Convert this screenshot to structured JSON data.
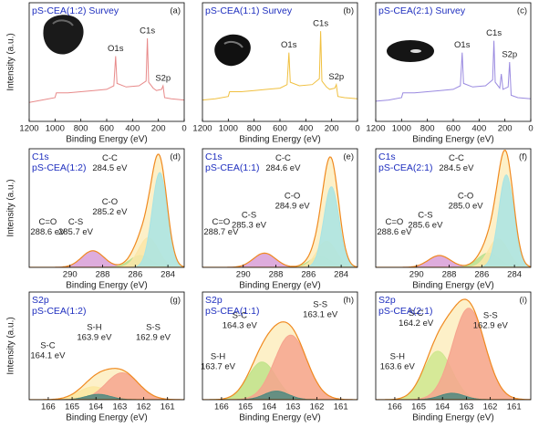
{
  "chart_data": [
    {
      "type": "line",
      "title": "pS-CEA(1:2) Survey",
      "label": "(a)",
      "xlabel": "Binding Energy (eV)",
      "ylabel": "Intensity (a.u.)",
      "color": "#e88a8a",
      "x": [
        1200,
        1100,
        1000,
        990,
        900,
        800,
        700,
        600,
        545,
        531,
        520,
        450,
        350,
        295,
        285,
        275,
        240,
        228,
        215,
        175,
        164,
        152,
        100,
        0
      ],
      "values": [
        16,
        18,
        20,
        24,
        24,
        25,
        26,
        27,
        30,
        55,
        32,
        29,
        30,
        34,
        70,
        33,
        28,
        27,
        26,
        27,
        30,
        20,
        19,
        18
      ],
      "xlim": [
        1200,
        0
      ],
      "xticks": [
        1200,
        1000,
        800,
        600,
        400,
        200,
        0
      ],
      "ylim": [
        0,
        100
      ],
      "annotations": [
        {
          "text": "O1s",
          "x": 531
        },
        {
          "text": "C1s",
          "x": 285
        },
        {
          "text": "S2p",
          "x": 164
        }
      ]
    },
    {
      "type": "line",
      "title": "pS-CEA(1:1) Survey",
      "label": "(b)",
      "xlabel": "Binding Energy (eV)",
      "color": "#f0c040",
      "x": [
        1200,
        1100,
        1000,
        990,
        900,
        800,
        700,
        600,
        545,
        531,
        520,
        450,
        350,
        295,
        285,
        275,
        240,
        228,
        215,
        175,
        164,
        152,
        100,
        0
      ],
      "values": [
        18,
        19,
        21,
        25,
        25,
        26,
        27,
        28,
        31,
        58,
        33,
        30,
        31,
        36,
        76,
        34,
        29,
        28,
        27,
        28,
        31,
        21,
        20,
        19
      ],
      "xlim": [
        1200,
        0
      ],
      "xticks": [
        1200,
        1000,
        800,
        600,
        400,
        200,
        0
      ],
      "ylim": [
        0,
        100
      ],
      "annotations": [
        {
          "text": "O1s",
          "x": 531
        },
        {
          "text": "C1s",
          "x": 285
        },
        {
          "text": "S2p",
          "x": 164
        }
      ]
    },
    {
      "type": "line",
      "title": "pS-CEA(2:1) Survey",
      "label": "(c)",
      "xlabel": "Binding Energy (eV)",
      "color": "#9a8ae0",
      "x": [
        1200,
        1100,
        1000,
        990,
        900,
        800,
        700,
        600,
        545,
        531,
        520,
        450,
        350,
        295,
        285,
        275,
        240,
        228,
        215,
        175,
        164,
        152,
        100,
        0
      ],
      "values": [
        17,
        18,
        20,
        24,
        24,
        25,
        26,
        27,
        30,
        58,
        32,
        29,
        30,
        35,
        68,
        33,
        28,
        40,
        27,
        29,
        50,
        22,
        20,
        19
      ],
      "xlim": [
        1200,
        0
      ],
      "xticks": [
        1200,
        1000,
        800,
        600,
        400,
        200,
        0
      ],
      "ylim": [
        0,
        100
      ],
      "annotations": [
        {
          "text": "O1s",
          "x": 531
        },
        {
          "text": "C1s",
          "x": 285
        },
        {
          "text": "S2p",
          "x": 164
        }
      ]
    },
    {
      "type": "peak",
      "title": "C1s",
      "subtitle": "pS-CEA(1:2)",
      "label": "(d)",
      "xlabel": "Binding Energy (eV)",
      "ylabel": "Intensity (a.u.)",
      "xlim": [
        292.5,
        283
      ],
      "xticks": [
        290,
        288,
        286,
        284
      ],
      "ylim": [
        0,
        100
      ],
      "envelope_color": "#f08a20",
      "series": [
        {
          "name": "C=O",
          "label": "288.6 eV",
          "center": 288.6,
          "height": 14,
          "fwhm": 1.6,
          "color": "#d8a0e0"
        },
        {
          "name": "C-S",
          "label": "285.7 eV",
          "center": 285.7,
          "height": 10,
          "fwhm": 1.5,
          "color": "#b8e090"
        },
        {
          "name": "C-O",
          "label": "285.2 eV",
          "center": 285.2,
          "height": 25,
          "fwhm": 1.4,
          "color": "#fce6a8"
        },
        {
          "name": "C-C",
          "label": "284.5 eV",
          "center": 284.5,
          "height": 80,
          "fwhm": 1.1,
          "color": "#a8e4e4"
        }
      ]
    },
    {
      "type": "peak",
      "title": "C1s",
      "subtitle": "pS-CEA(1:1)",
      "label": "(e)",
      "xlabel": "Binding Energy (eV)",
      "xlim": [
        292.5,
        283
      ],
      "xticks": [
        290,
        288,
        286,
        284
      ],
      "ylim": [
        0,
        100
      ],
      "envelope_color": "#f08a20",
      "series": [
        {
          "name": "C=O",
          "label": "288.7 eV",
          "center": 288.7,
          "height": 12,
          "fwhm": 1.6,
          "color": "#d8a0e0"
        },
        {
          "name": "C-S",
          "label": "285.3 eV",
          "center": 285.3,
          "height": 9,
          "fwhm": 1.5,
          "color": "#b8e090"
        },
        {
          "name": "C-O",
          "label": "284.9 eV",
          "center": 284.9,
          "height": 22,
          "fwhm": 1.4,
          "color": "#fce6a8"
        },
        {
          "name": "C-C",
          "label": "284.6 eV",
          "center": 284.6,
          "height": 68,
          "fwhm": 1.1,
          "color": "#a8e4e4"
        }
      ]
    },
    {
      "type": "peak",
      "title": "C1s",
      "subtitle": "pS-CEA(2:1)",
      "label": "(f)",
      "xlabel": "Binding Energy (eV)",
      "xlim": [
        292.5,
        283
      ],
      "xticks": [
        290,
        288,
        286,
        284
      ],
      "ylim": [
        0,
        100
      ],
      "envelope_color": "#f08a20",
      "series": [
        {
          "name": "C=O",
          "label": "288.6 eV",
          "center": 288.6,
          "height": 10,
          "fwhm": 1.6,
          "color": "#d8a0e0"
        },
        {
          "name": "C-S",
          "label": "285.6 eV",
          "center": 285.6,
          "height": 12,
          "fwhm": 1.5,
          "color": "#b8e090"
        },
        {
          "name": "C-O",
          "label": "285.0 eV",
          "center": 285.0,
          "height": 24,
          "fwhm": 1.4,
          "color": "#fce6a8"
        },
        {
          "name": "C-C",
          "label": "284.5 eV",
          "center": 284.5,
          "height": 78,
          "fwhm": 1.1,
          "color": "#a8e4e4"
        }
      ]
    },
    {
      "type": "peak",
      "title": "S2p",
      "subtitle": "pS-CEA(1:2)",
      "label": "(g)",
      "xlabel": "Binding Energy (eV)",
      "ylabel": "Intensity (a.u.)",
      "xlim": [
        166.8,
        160.3
      ],
      "xticks": [
        166,
        165,
        164,
        163,
        162,
        161
      ],
      "ylim": [
        0,
        100
      ],
      "envelope_color": "#f08a20",
      "series": [
        {
          "name": "S-C",
          "label": "164.1 eV",
          "center": 164.1,
          "height": 12,
          "fwhm": 1.5,
          "color": "#fbe7a0"
        },
        {
          "name": "S-S",
          "label": "162.9 eV",
          "center": 162.9,
          "height": 25,
          "fwhm": 1.6,
          "color": "#f6a48e"
        },
        {
          "name": "S-H",
          "label": "163.9 eV",
          "center": 163.9,
          "height": 5,
          "fwhm": 1.2,
          "color": "#4d8a80"
        }
      ]
    },
    {
      "type": "peak",
      "title": "S2p",
      "subtitle": "pS-CEA(1:1)",
      "label": "(h)",
      "xlabel": "Binding Energy (eV)",
      "xlim": [
        166.8,
        160.3
      ],
      "xticks": [
        166,
        165,
        164,
        163,
        162,
        161
      ],
      "ylim": [
        0,
        100
      ],
      "envelope_color": "#f08a20",
      "series": [
        {
          "name": "S-C",
          "label": "164.3 eV",
          "center": 164.3,
          "height": 35,
          "fwhm": 1.4,
          "color": "#c0e38a"
        },
        {
          "name": "S-S",
          "label": "163.1 eV",
          "center": 163.1,
          "height": 60,
          "fwhm": 1.6,
          "color": "#f6a48e"
        },
        {
          "name": "S-H",
          "label": "163.7 eV",
          "center": 163.7,
          "height": 8,
          "fwhm": 1.2,
          "color": "#4d8a80"
        }
      ]
    },
    {
      "type": "peak",
      "title": "S2p",
      "subtitle": "pS-CEA(2:1)",
      "label": "(i)",
      "xlabel": "Binding Energy (eV)",
      "xlim": [
        166.8,
        160.3
      ],
      "xticks": [
        166,
        165,
        164,
        163,
        162,
        161
      ],
      "ylim": [
        0,
        100
      ],
      "envelope_color": "#f08a20",
      "series": [
        {
          "name": "S-C",
          "label": "164.2 eV",
          "center": 164.2,
          "height": 45,
          "fwhm": 1.4,
          "color": "#cfe88f"
        },
        {
          "name": "S-S",
          "label": "162.9 eV",
          "center": 162.9,
          "height": 85,
          "fwhm": 1.6,
          "color": "#f6a48e"
        },
        {
          "name": "S-H",
          "label": "163.6 eV",
          "center": 163.6,
          "height": 6,
          "fwhm": 1.2,
          "color": "#4d8a80"
        }
      ]
    }
  ]
}
